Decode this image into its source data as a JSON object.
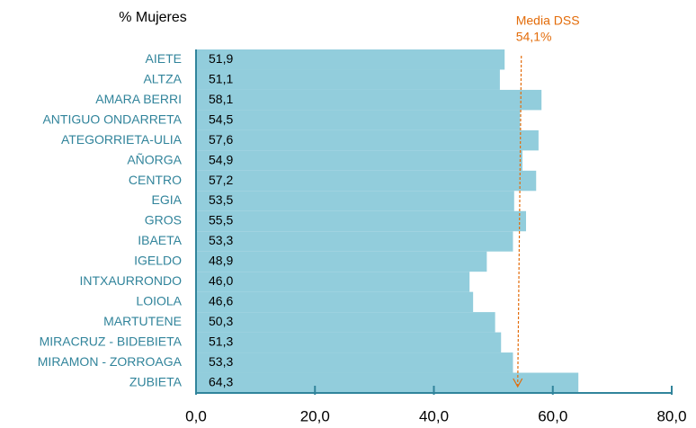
{
  "chart_data": {
    "type": "barh",
    "title": "% Mujeres",
    "categories": [
      "AIETE",
      "ALTZA",
      "AMARA BERRI",
      "ANTIGUO ONDARRETA",
      "ATEGORRIETA-ULIA",
      "AÑORGA",
      "CENTRO",
      "EGIA",
      "GROS",
      "IBAETA",
      "IGELDO",
      "INTXAURRONDO",
      "LOIOLA",
      "MARTUTENE",
      "MIRACRUZ - BIDEBIETA",
      "MIRAMON - ZORROAGA",
      "ZUBIETA"
    ],
    "values": [
      51.9,
      51.1,
      58.1,
      54.5,
      57.6,
      54.9,
      57.2,
      53.5,
      55.5,
      53.3,
      48.9,
      46.0,
      46.6,
      50.3,
      51.3,
      53.3,
      64.3
    ],
    "value_labels": [
      "51,9",
      "51,1",
      "58,1",
      "54,5",
      "57,6",
      "54,9",
      "57,2",
      "53,5",
      "55,5",
      "53,3",
      "48,9",
      "46,0",
      "46,6",
      "50,3",
      "51,3",
      "53,3",
      "64,3"
    ],
    "color": "#92cddc",
    "axis_color": "#31849b",
    "xlim": [
      0,
      80
    ],
    "xticks": [
      {
        "value": 0,
        "label": "0,0"
      },
      {
        "value": 20,
        "label": "20,0"
      },
      {
        "value": 40,
        "label": "40,0"
      },
      {
        "value": 60,
        "label": "60,0"
      },
      {
        "value": 80,
        "label": "80,0"
      }
    ],
    "annotation": {
      "text": "Media DSS",
      "value": 54.1,
      "value_label": "54,1%",
      "color": "#e36c0a"
    }
  }
}
